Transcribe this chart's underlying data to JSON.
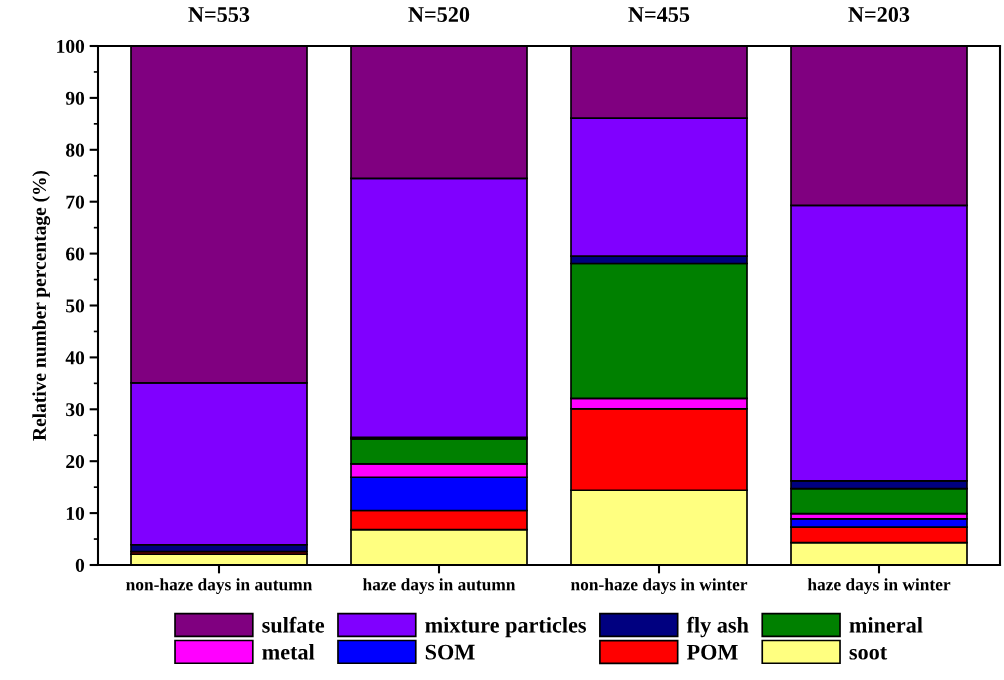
{
  "chart_data": {
    "type": "bar",
    "stacked": true,
    "ylabel": "Relative number percentage (%)",
    "categories": [
      "non-haze days in autumn",
      "haze days in autumn",
      "non-haze days in winter",
      "haze days in winter"
    ],
    "series": [
      {
        "name": "soot",
        "color": "#ffff80",
        "values": [
          2.1,
          6.8,
          14.4,
          4.3
        ]
      },
      {
        "name": "POM",
        "color": "#ff0000",
        "values": [
          0.5,
          3.7,
          15.7,
          3.0
        ]
      },
      {
        "name": "SOM",
        "color": "#0000ff",
        "values": [
          0,
          6.4,
          0,
          1.6
        ]
      },
      {
        "name": "metal",
        "color": "#ff00ff",
        "values": [
          0,
          2.6,
          2.0,
          1.0
        ]
      },
      {
        "name": "mineral",
        "color": "#008000",
        "values": [
          0,
          4.8,
          26.0,
          4.8
        ]
      },
      {
        "name": "fly ash",
        "color": "#000080",
        "values": [
          1.3,
          0.3,
          1.4,
          1.5
        ]
      },
      {
        "name": "mixture particles",
        "color": "#8000ff",
        "values": [
          31.2,
          49.9,
          26.6,
          53.1
        ]
      },
      {
        "name": "sulfate",
        "color": "#800080",
        "values": [
          64.9,
          25.5,
          13.9,
          30.7
        ]
      }
    ],
    "ylim": [
      0,
      100
    ],
    "yticks": [
      0,
      10,
      20,
      30,
      40,
      50,
      60,
      70,
      80,
      90,
      100
    ],
    "annotations": [
      {
        "text": "N=553",
        "x": "non-haze days in autumn",
        "y": 100
      },
      {
        "text": "N=520",
        "x": "haze days in autumn",
        "y": 100
      },
      {
        "text": "N=455",
        "x": "non-haze days in winter",
        "y": 100
      },
      {
        "text": "N=203",
        "x": "haze days in winter",
        "y": 100
      }
    ],
    "grid": false,
    "legend": "bottom"
  }
}
